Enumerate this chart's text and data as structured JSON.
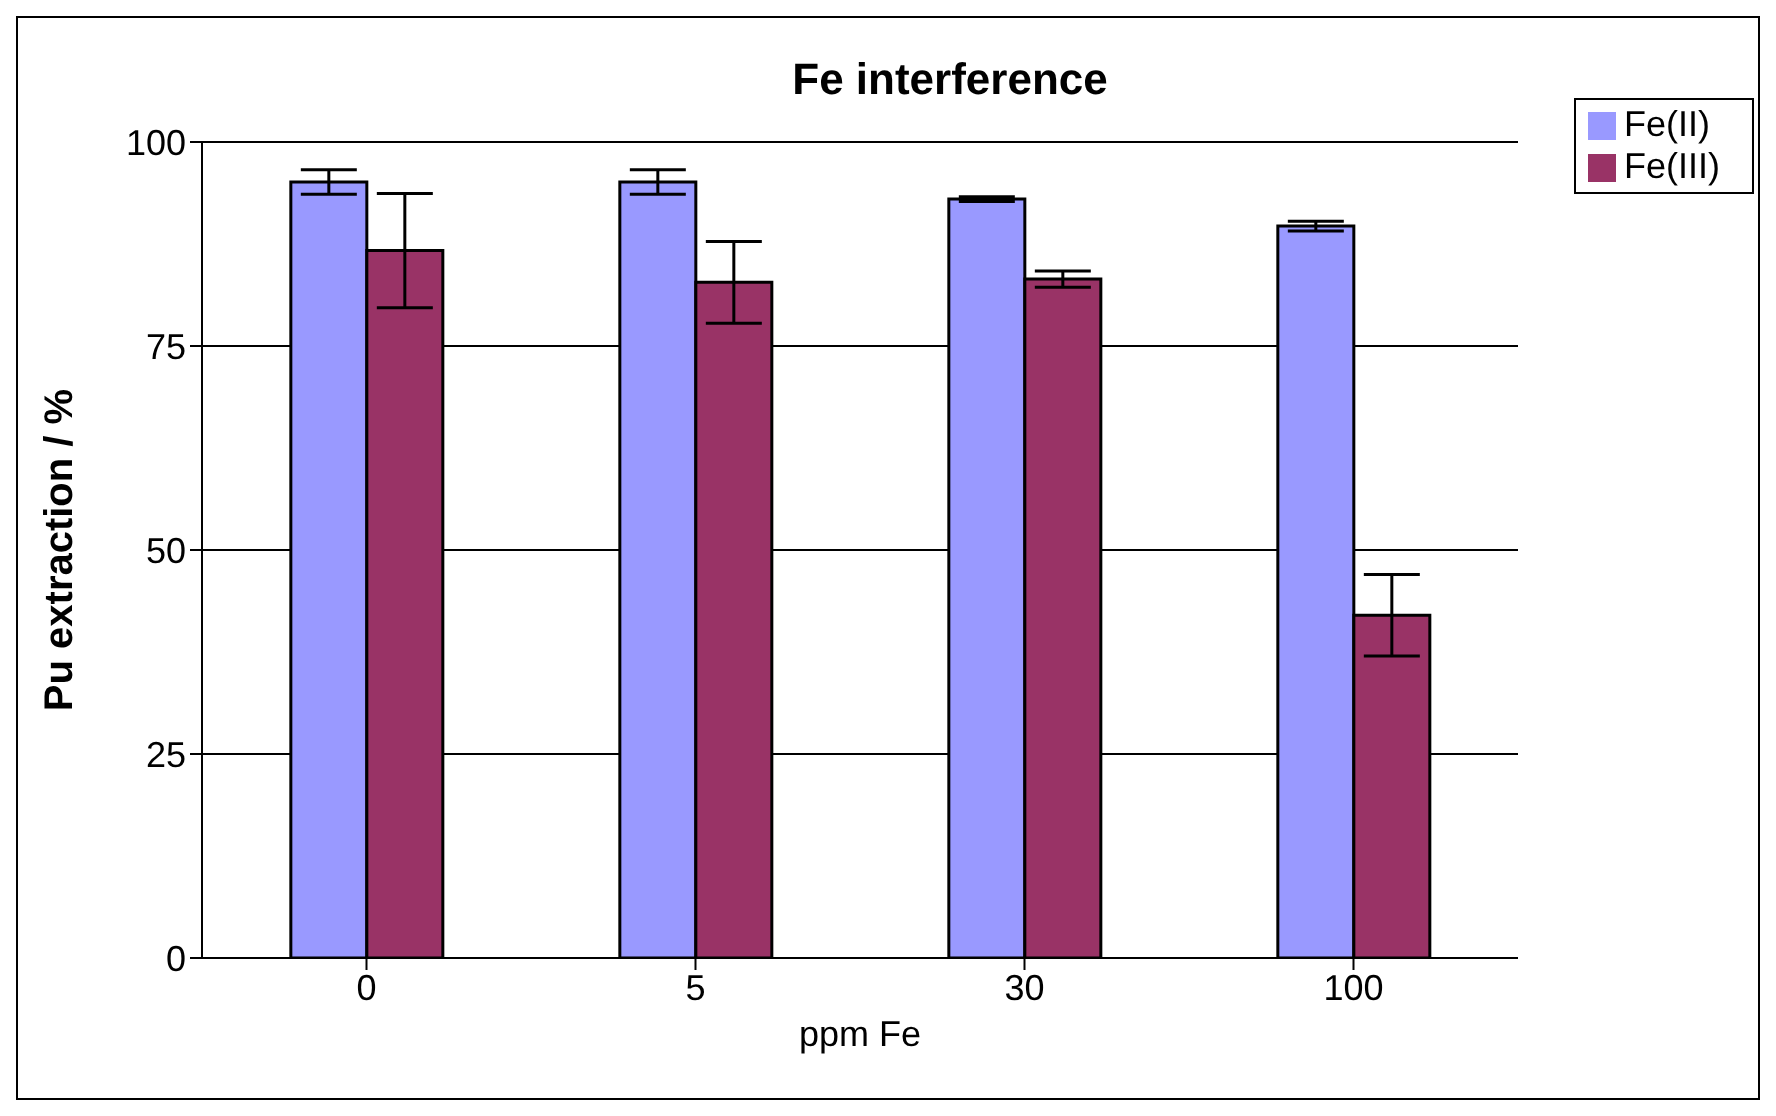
{
  "chart_data": {
    "type": "bar",
    "title": "Fe interference",
    "xlabel": "ppm Fe",
    "ylabel": "Pu extraction / %",
    "categories": [
      "0",
      "5",
      "30",
      "100"
    ],
    "series": [
      {
        "name": "Fe(II)",
        "color": "#9999ff",
        "values": [
          95.1,
          95.1,
          93.0,
          89.7
        ],
        "errors": [
          1.5,
          1.5,
          0.3,
          0.6
        ]
      },
      {
        "name": "Fe(III)",
        "color": "#993366",
        "values": [
          86.7,
          82.8,
          83.2,
          42.0
        ],
        "errors": [
          7,
          5,
          1,
          5
        ]
      }
    ],
    "ylim": [
      0,
      100
    ],
    "yticks": [
      0,
      25,
      50,
      75,
      100
    ],
    "grid": "y",
    "legend": "top right"
  }
}
